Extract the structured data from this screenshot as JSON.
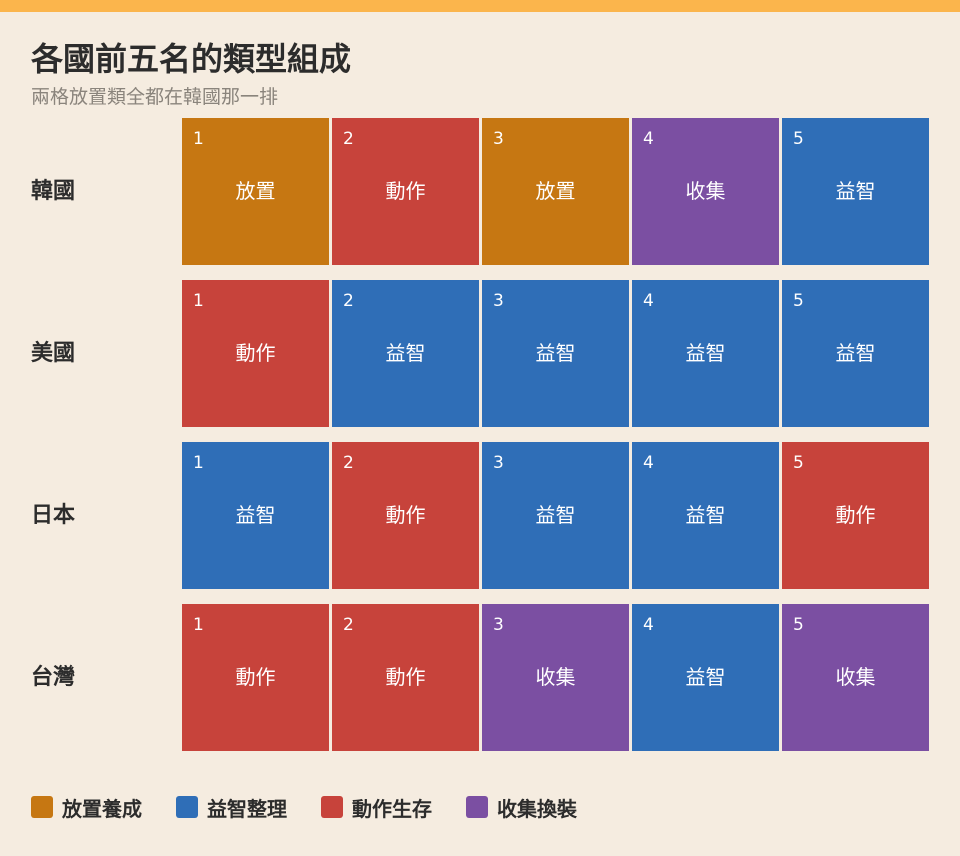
{
  "header": {
    "title": "各國前五名的類型組成",
    "subtitle": "兩格放置類全都在韓國那一排"
  },
  "colors": {
    "top_bar": "#fbb54c",
    "background": "#f5ece0",
    "idle": "#c67712",
    "puzzle": "#2f6eb7",
    "action": "#c7433b",
    "collect": "#7b4fa2"
  },
  "chart_data": {
    "type": "table",
    "title": "各國前五名的類型組成",
    "subtitle": "兩格放置類全都在韓國那一排",
    "ranks": [
      "1",
      "2",
      "3",
      "4",
      "5"
    ],
    "rows": [
      {
        "country": "韓國",
        "cells": [
          {
            "rank": "1",
            "label": "放置",
            "category": "idle"
          },
          {
            "rank": "2",
            "label": "動作",
            "category": "action"
          },
          {
            "rank": "3",
            "label": "放置",
            "category": "idle"
          },
          {
            "rank": "4",
            "label": "收集",
            "category": "collect"
          },
          {
            "rank": "5",
            "label": "益智",
            "category": "puzzle"
          }
        ]
      },
      {
        "country": "美國",
        "cells": [
          {
            "rank": "1",
            "label": "動作",
            "category": "action"
          },
          {
            "rank": "2",
            "label": "益智",
            "category": "puzzle"
          },
          {
            "rank": "3",
            "label": "益智",
            "category": "puzzle"
          },
          {
            "rank": "4",
            "label": "益智",
            "category": "puzzle"
          },
          {
            "rank": "5",
            "label": "益智",
            "category": "puzzle"
          }
        ]
      },
      {
        "country": "日本",
        "cells": [
          {
            "rank": "1",
            "label": "益智",
            "category": "puzzle"
          },
          {
            "rank": "2",
            "label": "動作",
            "category": "action"
          },
          {
            "rank": "3",
            "label": "益智",
            "category": "puzzle"
          },
          {
            "rank": "4",
            "label": "益智",
            "category": "puzzle"
          },
          {
            "rank": "5",
            "label": "動作",
            "category": "action"
          }
        ]
      },
      {
        "country": "台灣",
        "cells": [
          {
            "rank": "1",
            "label": "動作",
            "category": "action"
          },
          {
            "rank": "2",
            "label": "動作",
            "category": "action"
          },
          {
            "rank": "3",
            "label": "收集",
            "category": "collect"
          },
          {
            "rank": "4",
            "label": "益智",
            "category": "puzzle"
          },
          {
            "rank": "5",
            "label": "收集",
            "category": "collect"
          }
        ]
      }
    ],
    "legend": [
      {
        "label": "放置養成",
        "category": "idle"
      },
      {
        "label": "益智整理",
        "category": "puzzle"
      },
      {
        "label": "動作生存",
        "category": "action"
      },
      {
        "label": "收集換裝",
        "category": "collect"
      }
    ],
    "legend_position": "bottom-left"
  }
}
